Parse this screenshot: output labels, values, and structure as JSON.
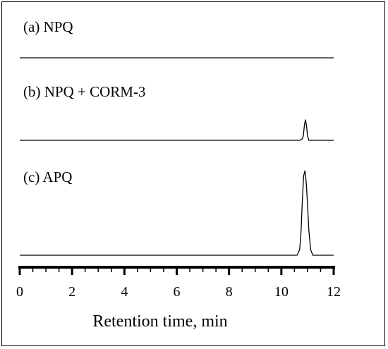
{
  "chart_data": {
    "type": "line",
    "xlabel": "Retention time, min",
    "xlim": [
      0,
      12
    ],
    "x_ticks": [
      "0",
      "2",
      "4",
      "6",
      "8",
      "10",
      "12"
    ],
    "panels": [
      {
        "label": "(a) NPQ",
        "x": [
          0,
          12
        ],
        "y": [
          0,
          0
        ]
      },
      {
        "label": "(b) NPQ + CORM-3",
        "x": [
          0,
          10.7,
          10.8,
          10.84,
          10.88,
          10.92,
          10.96,
          11.0,
          11.05,
          12
        ],
        "y": [
          0,
          0,
          0.5,
          1.5,
          5.0,
          7.0,
          5.0,
          1.5,
          0,
          0
        ]
      },
      {
        "label": "(c) APQ",
        "x": [
          0,
          10.6,
          10.7,
          10.75,
          10.8,
          10.85,
          10.9,
          10.95,
          11.0,
          11.05,
          11.12,
          11.2,
          12
        ],
        "y": [
          0,
          0,
          2,
          8,
          19,
          28,
          30,
          26,
          18,
          9,
          2,
          0,
          0
        ]
      }
    ]
  }
}
